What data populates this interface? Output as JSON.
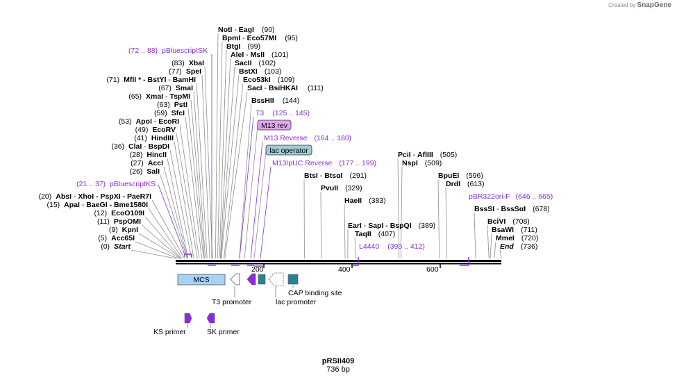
{
  "credit": {
    "prefix": "Created by",
    "brand": "SnapGene"
  },
  "construct": {
    "name": "pRSII409",
    "size": "736 bp"
  },
  "ruler": [
    {
      "pos": 200,
      "label": "200"
    },
    {
      "pos": 400,
      "label": "400"
    },
    {
      "pos": 600,
      "label": "600"
    }
  ],
  "sites_left": [
    {
      "name": "NotI",
      "name2": "EagI",
      "pos": "(90)",
      "pre": false,
      "site": 90
    },
    {
      "name": "BpmI",
      "name2": "Eco57MI",
      "pos": "(95)",
      "pre": false,
      "site": 95
    },
    {
      "name": "BtgI",
      "name2": "",
      "pos": "(99)",
      "pre": false,
      "site": 99
    },
    {
      "name": "AleI",
      "name2": "MslI",
      "pos": "(101)",
      "pre": false,
      "site": 101
    },
    {
      "name": "SacII",
      "name2": "",
      "pos": "(102)",
      "pre": false,
      "site": 102
    },
    {
      "name": "BstXI",
      "name2": "",
      "pos": "(103)",
      "pre": false,
      "site": 103
    },
    {
      "name": "Eco53kI",
      "name2": "",
      "pos": "(109)",
      "pre": false,
      "site": 109
    },
    {
      "name": "SacI",
      "name2": "BsiHKAI",
      "pos": "(111)",
      "pre": false,
      "site": 111
    },
    {
      "name": "BssHII",
      "name2": "",
      "pos": "(144)",
      "pre": false,
      "site": 144
    },
    {
      "name": "XbaI",
      "name2": "",
      "pos": "(83)",
      "pre": true,
      "site": 83
    },
    {
      "name": "SpeI",
      "name2": "",
      "pos": "(77)",
      "pre": true,
      "site": 77
    },
    {
      "name": "MflI * - BstYI",
      "name2": "BamHI",
      "pos": "(71)",
      "pre": true,
      "site": 71
    },
    {
      "name": "SmaI",
      "name2": "",
      "pos": "(67)",
      "pre": true,
      "site": 67
    },
    {
      "name": "XmaI",
      "name2": "TspMI",
      "pos": "(65)",
      "pre": true,
      "site": 65
    },
    {
      "name": "PstI",
      "name2": "",
      "pos": "(63)",
      "pre": true,
      "site": 63
    },
    {
      "name": "SfcI",
      "name2": "",
      "pos": "(59)",
      "pre": true,
      "site": 59
    },
    {
      "name": "ApoI",
      "name2": "EcoRI",
      "pos": "(53)",
      "pre": true,
      "site": 53
    },
    {
      "name": "EcoRV",
      "name2": "",
      "pos": "(49)",
      "pre": true,
      "site": 49
    },
    {
      "name": "HindIII",
      "name2": "",
      "pos": "(41)",
      "pre": true,
      "site": 41
    },
    {
      "name": "ClaI",
      "name2": "BspDI",
      "pos": "(36)",
      "pre": true,
      "site": 36
    },
    {
      "name": "HincII",
      "name2": "",
      "pos": "(28)",
      "pre": true,
      "site": 28
    },
    {
      "name": "AccI",
      "name2": "",
      "pos": "(27)",
      "pre": true,
      "site": 27
    },
    {
      "name": "SalI",
      "name2": "",
      "pos": "(26)",
      "pre": true,
      "site": 26
    },
    {
      "name": "AbsI",
      "name2": "XhoI - PspXI - PaeR7I",
      "pos": "(20)",
      "pre": true,
      "site": 20
    },
    {
      "name": "ApaI",
      "name2": "BaeGI - Bme1580I",
      "pos": "(15)",
      "pre": true,
      "site": 15
    },
    {
      "name": "EcoO109I",
      "name2": "",
      "pos": "(12)",
      "pre": true,
      "site": 12
    },
    {
      "name": "PspOMI",
      "name2": "",
      "pos": "(11)",
      "pre": true,
      "site": 11
    },
    {
      "name": "KpnI",
      "name2": "",
      "pos": "(9)",
      "pre": true,
      "site": 9
    },
    {
      "name": "Acc65I",
      "name2": "",
      "pos": "(5)",
      "pre": true,
      "site": 5
    },
    {
      "name": "Start",
      "name2": "",
      "pos": "(0)",
      "pre": true,
      "site": 0,
      "italic": true
    }
  ],
  "sites_right": [
    {
      "name": "BtsI",
      "name2": "BtsαI",
      "pos": "(291)",
      "site": 291
    },
    {
      "name": "PvuII",
      "name2": "",
      "pos": "(329)",
      "site": 329
    },
    {
      "name": "HaeII",
      "name2": "",
      "pos": "(383)",
      "site": 383
    },
    {
      "name": "EarI",
      "name2": "SapI - BspQI",
      "pos": "(389)",
      "site": 389
    },
    {
      "name": "TaqII",
      "name2": "",
      "pos": "(407)",
      "site": 407
    },
    {
      "name": "PciI",
      "name2": "AflIII",
      "pos": "(505)",
      "site": 505
    },
    {
      "name": "NspI",
      "name2": "",
      "pos": "(509)",
      "site": 509
    },
    {
      "name": "BpuEI",
      "name2": "",
      "pos": "(596)",
      "site": 596
    },
    {
      "name": "DrdI",
      "name2": "",
      "pos": "(613)",
      "site": 613
    },
    {
      "name": "BssSI",
      "name2": "BssSαI",
      "pos": "(678)",
      "site": 678
    },
    {
      "name": "BciVI",
      "name2": "",
      "pos": "(708)",
      "site": 708
    },
    {
      "name": "BsaWI",
      "name2": "",
      "pos": "(711)",
      "site": 711
    },
    {
      "name": "MmeI",
      "name2": "",
      "pos": "(720)",
      "site": 720
    },
    {
      "name": "End",
      "name2": "",
      "pos": "(736)",
      "site": 736,
      "italic": true
    }
  ],
  "primers": [
    {
      "name": "pBluescriptSK",
      "range": "(72 .. 88)"
    },
    {
      "name": "T3",
      "range": "(125 .. 145)"
    },
    {
      "name": "M13 Reverse",
      "range": "(164 .. 180)"
    },
    {
      "name": "M13/pUC Reverse",
      "range": "(177 .. 199)"
    },
    {
      "name": "pBluescriptKS",
      "range": "(21 .. 37)"
    },
    {
      "name": "L4440",
      "range": "(395 .. 412)"
    },
    {
      "name": "pBR322ori-F",
      "range": "(646 .. 665)"
    }
  ],
  "boxed_features": [
    {
      "name": "M13 rev",
      "color": "#e3a4ef"
    },
    {
      "name": "lac operator",
      "color": "#9fcbd6"
    }
  ],
  "features": {
    "mcs": "MCS",
    "t3_promoter": "T3 promoter",
    "lac_promoter": "lac promoter",
    "cap_site": "CAP binding site",
    "ks_primer": "KS primer",
    "sk_primer": "SK primer"
  },
  "colors": {
    "primer": "#8a2be2",
    "mcs": "#a9d1f7",
    "cap": "#2e7f92",
    "backbone": "#000000"
  }
}
